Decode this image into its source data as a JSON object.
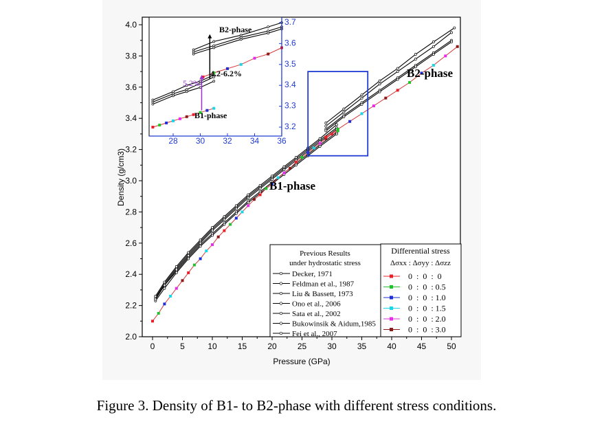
{
  "caption": "Figure 3. Density of B1- to B2-phase with different stress conditions.",
  "colors": {
    "axis": "#000000",
    "inset_axis": "#1f3bd1",
    "hydro": "#000000",
    "annotation_purple": "#9b30d9",
    "zoom_box": "#1f3bd1"
  },
  "chart_data": [
    {
      "type": "line",
      "xlabel": "Pressure (GPa)",
      "ylabel": "Density (g/cm3)",
      "xlim": [
        -1,
        52
      ],
      "ylim": [
        2.0,
        4.0
      ],
      "xticks": [
        "0",
        "5",
        "10",
        "15",
        "20",
        "25",
        "30",
        "35",
        "40",
        "45",
        "50"
      ],
      "yticks": [
        "2.0",
        "2.2",
        "2.4",
        "2.6",
        "2.8",
        "3.0",
        "3.2",
        "3.4",
        "3.6",
        "3.8",
        "4.0"
      ],
      "phase_labels": [
        "B1-phase",
        "B2-phase"
      ],
      "legend_hydrostatic": {
        "title_lines": [
          "Previous Results",
          "under hydrostatic stress"
        ],
        "entries": [
          "Decker, 1971",
          "Feldman et al., 1987",
          "Liu & Bassett, 1973",
          "Ono et al., 2006",
          "Sata et al., 2002",
          "Bukowinsik & Aidum,1985",
          "Fei et al., 2007"
        ]
      },
      "legend_stress": {
        "title": "Differential stress",
        "subtitle": "Δσxx : Δσyy : Δσzz",
        "entries": [
          "0  :  0  :  0",
          "0  :  0  : 0.5",
          "0  :  0  : 1.0",
          "0  :  0  : 1.5",
          "0  :  0  : 2.0",
          "0  :  0  : 3.0"
        ],
        "colors": [
          "#e8202a",
          "#22c22a",
          "#1f2fd8",
          "#19d6e8",
          "#e82be8",
          "#8b1a1a"
        ]
      },
      "series_hydrostatic_b1": [
        {
          "x": [
            0.5,
            2,
            4,
            6,
            8,
            10,
            12,
            14,
            16,
            18,
            20,
            22,
            24,
            26,
            28,
            30.8
          ],
          "y": [
            2.24,
            2.33,
            2.42,
            2.51,
            2.59,
            2.66,
            2.73,
            2.8,
            2.87,
            2.93,
            2.99,
            3.05,
            3.11,
            3.17,
            3.23,
            3.31
          ]
        },
        {
          "x": [
            0.5,
            2,
            4,
            6,
            8,
            10,
            12,
            14,
            16,
            18,
            20,
            22,
            24,
            26,
            28,
            30.8
          ],
          "y": [
            2.23,
            2.31,
            2.41,
            2.5,
            2.58,
            2.65,
            2.72,
            2.79,
            2.86,
            2.92,
            2.98,
            3.04,
            3.1,
            3.16,
            3.22,
            3.3
          ]
        },
        {
          "x": [
            0.5,
            2,
            4,
            6,
            8,
            10,
            12,
            14,
            16,
            18,
            20,
            22,
            24,
            26,
            28,
            30.8
          ],
          "y": [
            2.25,
            2.34,
            2.44,
            2.53,
            2.61,
            2.69,
            2.76,
            2.83,
            2.9,
            2.96,
            3.02,
            3.08,
            3.14,
            3.2,
            3.26,
            3.34
          ]
        },
        {
          "x": [
            0.5,
            2,
            4,
            6,
            8,
            10,
            12,
            14,
            16,
            18,
            20,
            22,
            24,
            26,
            28,
            30.8
          ],
          "y": [
            2.26,
            2.35,
            2.45,
            2.54,
            2.62,
            2.7,
            2.77,
            2.84,
            2.91,
            2.97,
            3.03,
            3.09,
            3.15,
            3.21,
            3.27,
            3.36
          ]
        },
        {
          "x": [
            0.5,
            2,
            4,
            6,
            8,
            10,
            12,
            14,
            16,
            18,
            20,
            22,
            24,
            26,
            28,
            30.8
          ],
          "y": [
            2.24,
            2.33,
            2.43,
            2.52,
            2.6,
            2.68,
            2.75,
            2.82,
            2.89,
            2.95,
            3.01,
            3.07,
            3.13,
            3.19,
            3.25,
            3.33
          ]
        }
      ],
      "series_hydrostatic_b2": [
        {
          "x": [
            29,
            32,
            35,
            38,
            41,
            44,
            47,
            50
          ],
          "y": [
            3.33,
            3.42,
            3.5,
            3.58,
            3.66,
            3.74,
            3.82,
            3.9
          ]
        },
        {
          "x": [
            29,
            32,
            35,
            38,
            41,
            44,
            47,
            50
          ],
          "y": [
            3.32,
            3.41,
            3.49,
            3.57,
            3.65,
            3.73,
            3.81,
            3.89
          ]
        },
        {
          "x": [
            29,
            32,
            35,
            38,
            41,
            44,
            47,
            50
          ],
          "y": [
            3.35,
            3.44,
            3.53,
            3.62,
            3.7,
            3.78,
            3.86,
            3.95
          ]
        },
        {
          "x": [
            29,
            32,
            35,
            38,
            41,
            44,
            47,
            50.5
          ],
          "y": [
            3.37,
            3.46,
            3.55,
            3.64,
            3.72,
            3.81,
            3.89,
            3.98
          ]
        }
      ],
      "series_stress_b1": {
        "x": [
          0,
          1,
          2,
          3,
          4,
          5,
          6,
          7,
          8,
          9,
          10,
          11,
          12,
          13,
          14,
          15,
          16,
          17,
          18,
          19,
          20,
          21,
          22,
          23,
          24,
          25,
          26,
          27,
          28,
          29,
          30,
          31
        ],
        "y": [
          2.1,
          2.15,
          2.21,
          2.26,
          2.31,
          2.36,
          2.41,
          2.46,
          2.5,
          2.55,
          2.59,
          2.64,
          2.68,
          2.72,
          2.76,
          2.8,
          2.84,
          2.88,
          2.91,
          2.95,
          2.98,
          3.02,
          3.05,
          3.08,
          3.12,
          3.15,
          3.18,
          3.21,
          3.24,
          3.27,
          3.3,
          3.32
        ]
      },
      "series_stress_b2": {
        "x": [
          29,
          31,
          33,
          35,
          37,
          39,
          41,
          43,
          45,
          47,
          49,
          51
        ],
        "y": [
          3.28,
          3.33,
          3.38,
          3.43,
          3.48,
          3.53,
          3.58,
          3.63,
          3.69,
          3.74,
          3.8,
          3.86
        ]
      },
      "zoom_box": {
        "x": [
          26,
          36
        ],
        "y": [
          3.16,
          3.7
        ]
      }
    },
    {
      "type": "line",
      "inset": true,
      "xlim": [
        26.5,
        36
      ],
      "ylim": [
        3.15,
        3.7
      ],
      "xticks": [
        "28",
        "30",
        "32",
        "34",
        "36"
      ],
      "yticks": [
        "3.2",
        "3.3",
        "3.4",
        "3.5",
        "3.6",
        "3.7"
      ],
      "labels": {
        "b1": "B1-phase",
        "b2": "B2-phase",
        "gap_black": "4.2-6.2%",
        "gap_purple": "5.2%"
      },
      "series_hydrostatic_b1": [
        {
          "x": [
            26.5,
            28,
            29,
            30,
            31
          ],
          "y": [
            3.31,
            3.35,
            3.37,
            3.39,
            3.42
          ]
        },
        {
          "x": [
            26.5,
            28,
            29,
            30,
            31
          ],
          "y": [
            3.32,
            3.36,
            3.38,
            3.41,
            3.44
          ]
        },
        {
          "x": [
            26.5,
            28,
            29,
            30,
            31
          ],
          "y": [
            3.33,
            3.37,
            3.4,
            3.42,
            3.45
          ]
        }
      ],
      "series_hydrostatic_b2": [
        {
          "x": [
            29.5,
            31,
            33,
            35,
            36
          ],
          "y": [
            3.55,
            3.58,
            3.62,
            3.65,
            3.67
          ]
        },
        {
          "x": [
            29.5,
            31,
            33,
            35,
            36
          ],
          "y": [
            3.56,
            3.59,
            3.63,
            3.66,
            3.68
          ]
        },
        {
          "x": [
            29.5,
            31,
            33,
            35,
            36
          ],
          "y": [
            3.57,
            3.61,
            3.64,
            3.68,
            3.7
          ]
        }
      ],
      "series_stress_b1": {
        "x": [
          26.5,
          27,
          27.5,
          28,
          28.5,
          29,
          29.5,
          30,
          30.5,
          31
        ],
        "y": [
          3.2,
          3.21,
          3.22,
          3.23,
          3.24,
          3.25,
          3.26,
          3.27,
          3.28,
          3.29
        ]
      },
      "series_stress_b2": {
        "x": [
          30.2,
          31,
          32,
          33,
          34,
          35,
          36
        ],
        "y": [
          3.44,
          3.46,
          3.48,
          3.5,
          3.53,
          3.55,
          3.58
        ]
      }
    }
  ]
}
